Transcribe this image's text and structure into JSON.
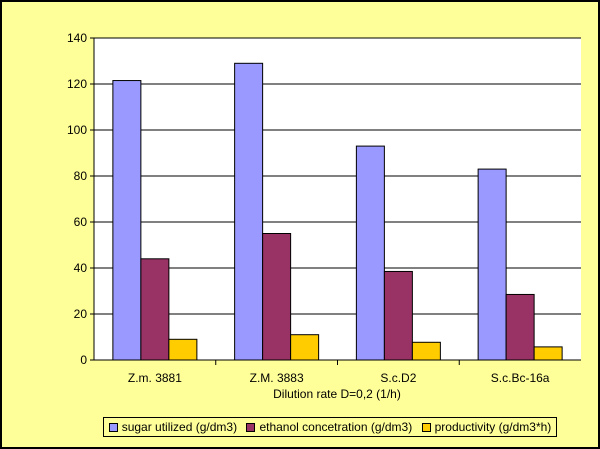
{
  "chart_data": {
    "type": "bar",
    "title": "",
    "xlabel": "Dilution rate D=0,2 (1/h)",
    "ylabel": "",
    "categories": [
      "Z.m. 3881",
      "Z.M. 3883",
      "S.c.D2",
      "S.c.Bc-16a"
    ],
    "series": [
      {
        "name": "sugar utilized (g/dm3)",
        "color": "#9999ff",
        "values": [
          121.5,
          129,
          93,
          83
        ]
      },
      {
        "name": "ethanol concetration (g/dm3)",
        "color": "#993366",
        "values": [
          44,
          55,
          38.5,
          28.5
        ]
      },
      {
        "name": "productivity (g/dm3*h)",
        "color": "#ffcc00",
        "values": [
          9,
          11,
          7.7,
          5.7
        ]
      }
    ],
    "ylim": [
      0,
      140
    ],
    "yticks": [
      0,
      20,
      40,
      60,
      80,
      100,
      120,
      140
    ],
    "grid": true,
    "legend_position": "bottom",
    "plot_background": "#ffffff",
    "chart_background": "#ffff99"
  }
}
